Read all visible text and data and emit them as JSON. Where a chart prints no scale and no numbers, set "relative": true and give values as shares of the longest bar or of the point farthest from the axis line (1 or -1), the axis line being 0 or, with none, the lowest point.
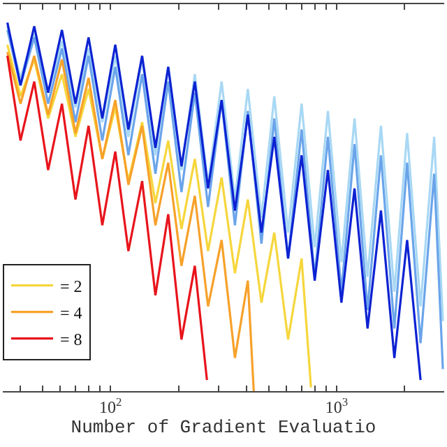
{
  "chart_data": {
    "type": "line",
    "relative": true,
    "log": "x",
    "xlabel": "Number of Gradient Evaluatio",
    "x": [
      35,
      40,
      46,
      53,
      61,
      70,
      80,
      92,
      105,
      120,
      138,
      158,
      180,
      206,
      236,
      270,
      310,
      355,
      405,
      465,
      530,
      610,
      700,
      800,
      915,
      1050,
      1200,
      1370,
      1570,
      1800,
      2050,
      2350,
      2700,
      2950
    ],
    "xlim": [
      33.4,
      2990
    ],
    "xticks": [
      {
        "value": 40,
        "label": null
      },
      {
        "value": 50,
        "label": null
      },
      {
        "value": 60,
        "label": null
      },
      {
        "value": 70,
        "label": null
      },
      {
        "value": 80,
        "label": null
      },
      {
        "value": 90,
        "label": null
      },
      {
        "value": 100,
        "label": "10$^{2}$"
      },
      {
        "value": 200,
        "label": null
      },
      {
        "value": 300,
        "label": null
      },
      {
        "value": 400,
        "label": null
      },
      {
        "value": 500,
        "label": null
      },
      {
        "value": 600,
        "label": null
      },
      {
        "value": 700,
        "label": null
      },
      {
        "value": 800,
        "label": null
      },
      {
        "value": 900,
        "label": null
      },
      {
        "value": 1000,
        "label": "10$^{3}$"
      },
      {
        "value": 2000,
        "label": null
      }
    ],
    "tick_labels": "x",
    "legend": "bottom left",
    "marker": "none",
    "line_style": "solid",
    "series": [
      {
        "color": "#a8d8f4",
        "values": [
          0.99,
          0.85,
          0.97,
          0.81,
          0.95,
          0.77,
          0.93,
          0.73,
          0.91,
          0.69,
          0.9,
          0.64,
          0.88,
          0.6,
          0.86,
          0.56,
          0.84,
          0.52,
          0.82,
          0.47,
          0.8,
          0.43,
          0.78,
          0.39,
          0.76,
          0.35,
          0.74,
          0.31,
          0.72,
          0.27,
          0.7,
          0.23,
          0.69,
          0.19
        ]
      },
      {
        "color": "#6aa4ea",
        "values": [
          0.98,
          0.83,
          0.96,
          0.78,
          0.93,
          0.73,
          0.91,
          0.68,
          0.88,
          0.64,
          0.86,
          0.59,
          0.84,
          0.54,
          0.81,
          0.5,
          0.79,
          0.45,
          0.76,
          0.4,
          0.74,
          0.36,
          0.71,
          0.31,
          0.69,
          0.27,
          0.67,
          0.22,
          0.64,
          0.17,
          0.62,
          0.13,
          0.59,
          0.06
        ]
      },
      {
        "color": "#0c22d2",
        "values": [
          1.0,
          0.83,
          0.99,
          0.81,
          0.98,
          0.78,
          0.96,
          0.74,
          0.94,
          0.71,
          0.91,
          0.66,
          0.88,
          0.61,
          0.84,
          0.55,
          0.79,
          0.49,
          0.75,
          0.43,
          0.69,
          0.36,
          0.64,
          0.3,
          0.6,
          0.24,
          0.55,
          0.17,
          0.49,
          0.09,
          0.41,
          0.03,
          null,
          null
        ]
      },
      {
        "name": "= 2",
        "color": "#f6d63c",
        "x": [
          35,
          40,
          46,
          53,
          61,
          70,
          80,
          92,
          105,
          120,
          138,
          158,
          180,
          206,
          236,
          270,
          310,
          355,
          405,
          465,
          530,
          610,
          700,
          770
        ],
        "values": [
          0.94,
          0.8,
          0.9,
          0.74,
          0.86,
          0.69,
          0.82,
          0.63,
          0.77,
          0.57,
          0.73,
          0.51,
          0.68,
          0.44,
          0.63,
          0.38,
          0.58,
          0.32,
          0.52,
          0.24,
          0.43,
          0.14,
          0.36,
          0.01
        ]
      },
      {
        "name": "= 4",
        "color": "#f7a12a",
        "x": [
          35,
          40,
          46,
          53,
          61,
          70,
          80,
          92,
          105,
          120,
          138,
          158,
          180,
          206,
          236,
          270,
          310,
          355,
          405,
          430
        ],
        "values": [
          0.92,
          0.78,
          0.91,
          0.75,
          0.9,
          0.7,
          0.85,
          0.63,
          0.79,
          0.56,
          0.72,
          0.45,
          0.62,
          0.34,
          0.53,
          0.23,
          0.41,
          0.09,
          0.3,
          0
        ]
      },
      {
        "name": "= 8",
        "color": "#e8141c",
        "x": [
          35,
          40,
          46,
          53,
          61,
          70,
          80,
          92,
          105,
          120,
          138,
          158,
          180,
          206,
          236,
          267
        ],
        "values": [
          0.91,
          0.68,
          0.84,
          0.6,
          0.78,
          0.52,
          0.72,
          0.45,
          0.65,
          0.38,
          0.57,
          0.26,
          0.48,
          0.14,
          0.34,
          0.03
        ]
      }
    ]
  }
}
